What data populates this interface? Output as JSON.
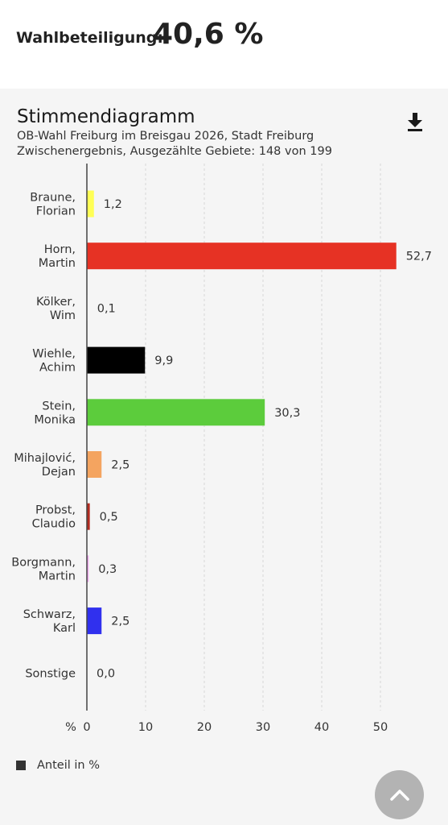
{
  "turnout": {
    "label": "Wahlbeteiligung:",
    "value": "40,6 %"
  },
  "header": {
    "title": "Stimmendiagramm",
    "subtitle1": "OB-Wahl Freiburg im Breisgau 2026, Stadt Freiburg",
    "subtitle2": "Zwischenergebnis, Ausgezählte Gebiete: 148 von 199"
  },
  "icons": {
    "download": "download-icon",
    "scroll_top": "chevron-up-icon"
  },
  "legend": {
    "label": "Anteil in %"
  },
  "chart_data": {
    "type": "bar",
    "orientation": "horizontal",
    "axis_unit_label": "%",
    "categories": [
      [
        "Braune,",
        "Florian"
      ],
      [
        "Horn,",
        "Martin"
      ],
      [
        "Kölker,",
        "Wim"
      ],
      [
        "Wiehle,",
        "Achim"
      ],
      [
        "Stein,",
        "Monika"
      ],
      [
        "Mihajlović,",
        "Dejan"
      ],
      [
        "Probst,",
        "Claudio"
      ],
      [
        "Borgmann,",
        "Martin"
      ],
      [
        "Schwarz,",
        "Karl"
      ],
      [
        "Sonstige"
      ]
    ],
    "values": [
      1.2,
      52.7,
      0.1,
      9.9,
      30.3,
      2.5,
      0.5,
      0.3,
      2.5,
      0.0
    ],
    "value_labels": [
      "1,2",
      "52,7",
      "0,1",
      "9,9",
      "30,3",
      "2,5",
      "0,5",
      "0,3",
      "2,5",
      "0,0"
    ],
    "colors": [
      "#ffff55",
      "#e63224",
      "#ffffff",
      "#000000",
      "#5ccc3c",
      "#f4a460",
      "#b22a1f",
      "#f0a8f0",
      "#3030ee",
      "#888888"
    ],
    "xlim": [
      0,
      55
    ],
    "xticks": [
      0,
      10,
      20,
      30,
      40,
      50
    ],
    "xtick_labels": [
      "0",
      "10",
      "20",
      "30",
      "40",
      "50"
    ],
    "grid": "vertical-dashed",
    "legend_position": "bottom-left"
  }
}
